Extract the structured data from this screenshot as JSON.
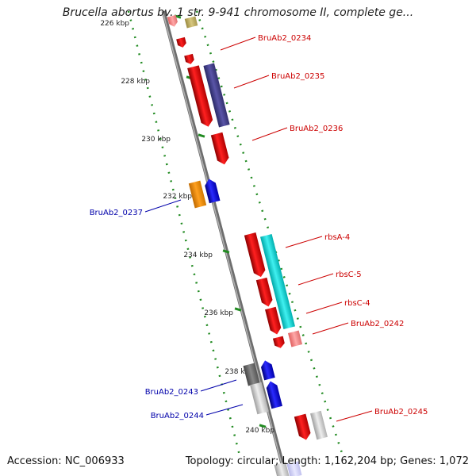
{
  "title": "Brucella abortus bv. 1 str. 9-941 chromosome II, complete ge...",
  "footer": {
    "accession_label": "Accession:",
    "accession": "NC_006933",
    "topology_label": "Topology:",
    "topology": "circular;",
    "length_label": "Length:",
    "length": "1,162,204 bp;",
    "genes_label": "Genes:",
    "genes": "1,072"
  },
  "colors": {
    "forward": "#ff0000",
    "reverse": "#0000ff",
    "backbone": "#808080",
    "ticks": "#228b22",
    "label_red": "#cc0000",
    "label_blue": "#0000aa"
  },
  "ticks": [
    "226 kbp",
    "228 kbp",
    "230 kbp",
    "232 kbp",
    "234 kbp",
    "236 kbp",
    "238 kbp",
    "240 kbp"
  ],
  "genes": [
    {
      "name": "BruAb2_0234",
      "strand": "forward"
    },
    {
      "name": "BruAb2_0235",
      "strand": "forward"
    },
    {
      "name": "BruAb2_0236",
      "strand": "forward"
    },
    {
      "name": "BruAb2_0237",
      "strand": "reverse"
    },
    {
      "name": "rbsA-4",
      "strand": "forward"
    },
    {
      "name": "rbsC-5",
      "strand": "forward"
    },
    {
      "name": "rbsC-4",
      "strand": "forward"
    },
    {
      "name": "BruAb2_0242",
      "strand": "forward"
    },
    {
      "name": "BruAb2_0243",
      "strand": "reverse"
    },
    {
      "name": "BruAb2_0244",
      "strand": "reverse"
    },
    {
      "name": "BruAb2_0245",
      "strand": "forward"
    }
  ]
}
